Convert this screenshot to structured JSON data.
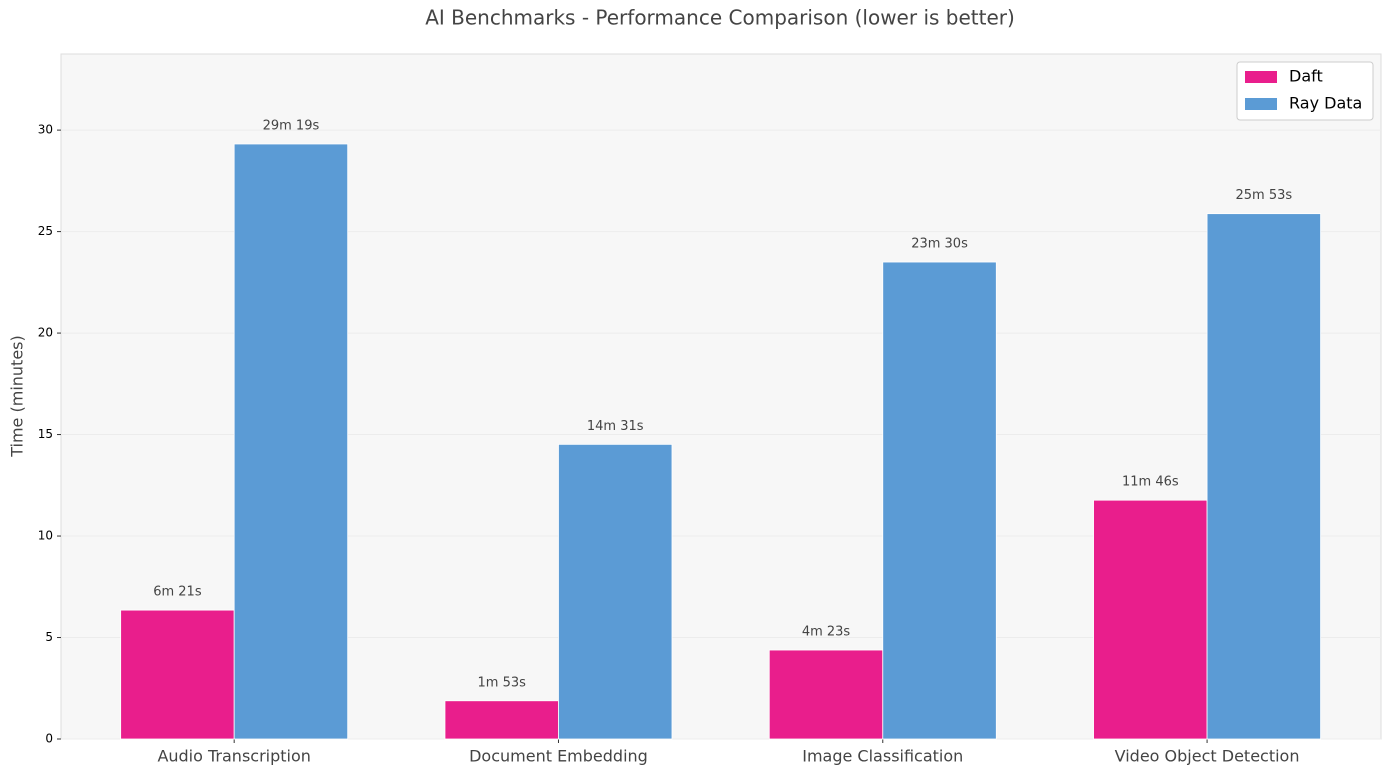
{
  "chart_data": {
    "type": "bar",
    "title": "AI Benchmarks - Performance Comparison (lower is better)",
    "y_label": "Time (minutes)",
    "categories": [
      "Audio Transcription",
      "Document Embedding",
      "Image Classification",
      "Video Object Detection"
    ],
    "series": [
      {
        "name": "Daft",
        "color": "#e91e8c",
        "values": [
          6.35,
          1.8833,
          4.3833,
          11.7667
        ],
        "value_labels": [
          "6m 21s",
          "1m 53s",
          "4m 23s",
          "11m 46s"
        ]
      },
      {
        "name": "Ray Data",
        "color": "#5b9bd5",
        "values": [
          29.3167,
          14.5167,
          23.5,
          25.8833
        ],
        "value_labels": [
          "29m 19s",
          "14m 31s",
          "23m 30s",
          "25m 53s"
        ]
      }
    ],
    "ylim": [
      0,
      33.75
    ],
    "yticks": [
      0,
      5,
      10,
      15,
      20,
      25,
      30
    ],
    "grid": true,
    "legend": "upper right"
  }
}
